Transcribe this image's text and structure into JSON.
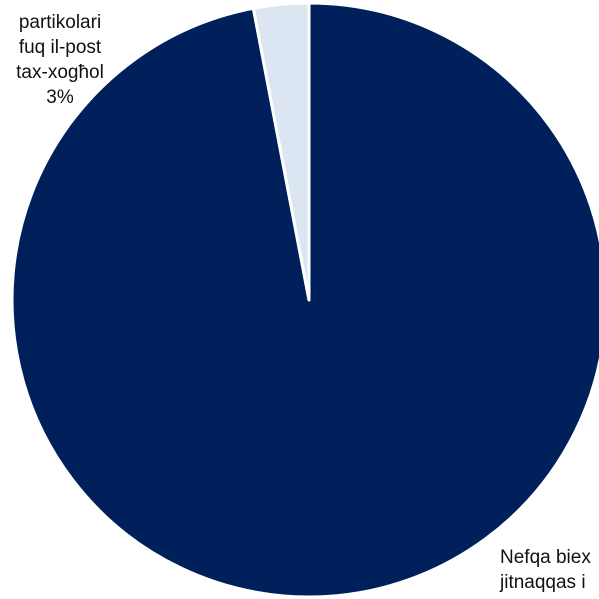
{
  "chart_data": {
    "type": "pie",
    "slices": [
      {
        "label_lines": [
          "Nefqa biex",
          "jitnaqqas i"
        ],
        "value": 97,
        "color": "#00205b"
      },
      {
        "label_lines": [
          "partikolari",
          "fuq il-post",
          "tax-xogħol",
          "3%"
        ],
        "value": 3,
        "color": "#dce6f2"
      }
    ],
    "title": "",
    "legend": "none"
  }
}
